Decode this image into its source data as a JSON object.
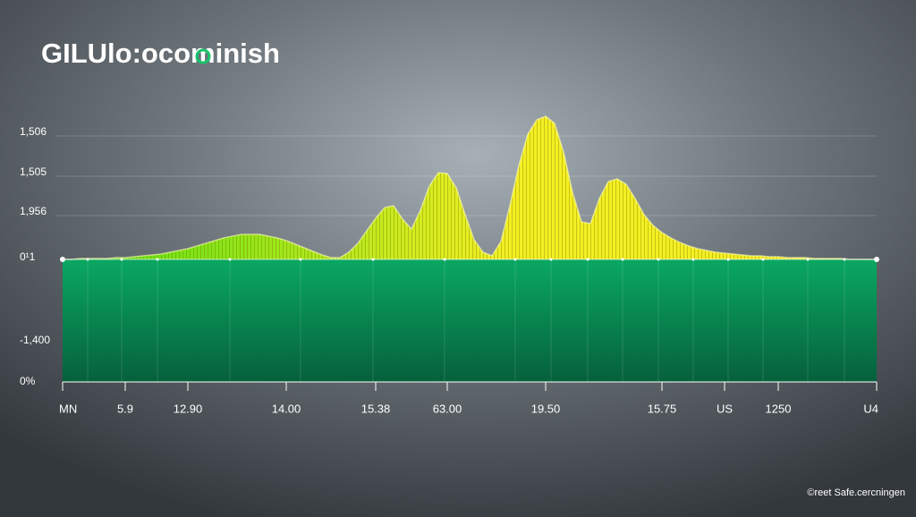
{
  "title": "GILUlo:ocominish",
  "footer": "©reet Safe.cercningen",
  "chart_data": {
    "type": "area",
    "categories": [
      "MN",
      null,
      null,
      null,
      null,
      null,
      null,
      "5.9",
      null,
      null,
      null,
      null,
      null,
      null,
      "12.90",
      null,
      null,
      null,
      null,
      null,
      null,
      null,
      null,
      null,
      null,
      "14.00",
      null,
      null,
      null,
      null,
      null,
      null,
      null,
      null,
      null,
      "15.38",
      null,
      null,
      null,
      null,
      null,
      null,
      null,
      "63.00",
      null,
      null,
      null,
      null,
      null,
      null,
      null,
      null,
      null,
      null,
      "19.50",
      null,
      null,
      null,
      null,
      null,
      null,
      null,
      null,
      null,
      null,
      null,
      null,
      "15.75",
      null,
      null,
      null,
      null,
      null,
      null,
      "US",
      null,
      null,
      null,
      null,
      null,
      "1250",
      null,
      null,
      null,
      null,
      null,
      null,
      null,
      null,
      null,
      null,
      "U4"
    ],
    "values": [
      0,
      0,
      1,
      1,
      1,
      1,
      2,
      2,
      3,
      4,
      5,
      6,
      8,
      10,
      12,
      15,
      18,
      21,
      24,
      26,
      28,
      28,
      28,
      26,
      24,
      21,
      17,
      13,
      9,
      5,
      2,
      2,
      8,
      18,
      32,
      46,
      58,
      60,
      45,
      34,
      55,
      82,
      97,
      96,
      80,
      50,
      22,
      8,
      4,
      20,
      60,
      105,
      140,
      156,
      160,
      152,
      120,
      75,
      42,
      40,
      68,
      87,
      90,
      84,
      68,
      50,
      38,
      30,
      24,
      19,
      15,
      12,
      10,
      8,
      7,
      6,
      5,
      4,
      4,
      3,
      3,
      2,
      2,
      2,
      1,
      1,
      1,
      1,
      0,
      0,
      0,
      0
    ],
    "ylim": [
      0,
      160
    ],
    "y_labels": [
      "1,506",
      "1,505",
      "1,956",
      "0¹1",
      "-1,400",
      "0%"
    ],
    "colors": [
      "#4fe012",
      "#f4ef22"
    ],
    "fill_color": "#0aa862"
  }
}
